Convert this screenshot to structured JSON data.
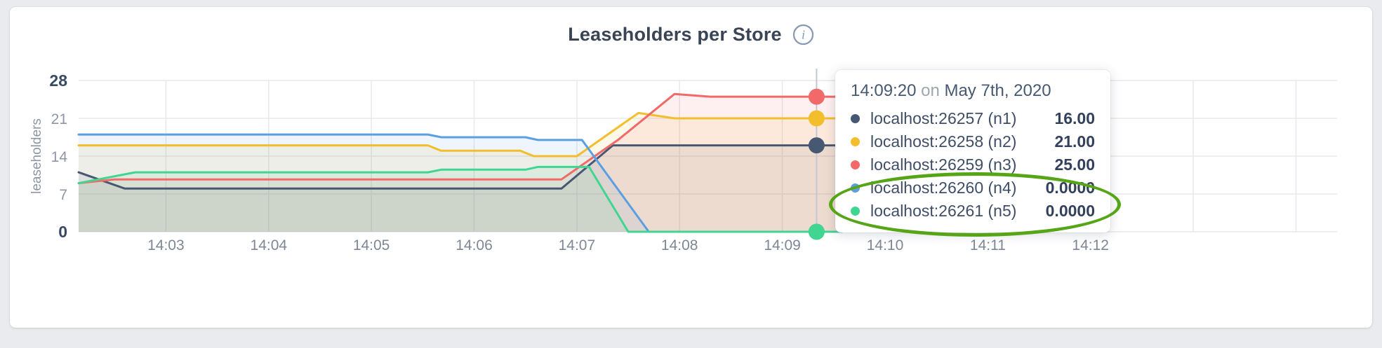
{
  "header": {
    "info_icon": "info-icon"
  },
  "chart_data": {
    "type": "area",
    "title": "Leaseholders per Store",
    "xlabel": "",
    "ylabel": "leaseholders",
    "ylim": [
      0,
      28
    ],
    "yticks": [
      0,
      7,
      14,
      21,
      28
    ],
    "x_tick_labels": [
      "14:03",
      "14:04",
      "14:05",
      "14:06",
      "14:07",
      "14:08",
      "14:09",
      "14:10",
      "14:11",
      "14:12"
    ],
    "x_tick_minutes": [
      3,
      4,
      5,
      6,
      7,
      8,
      9,
      10,
      11,
      12
    ],
    "x_domain_minutes": [
      2.15,
      14.4
    ],
    "grid": true,
    "legend_position": "hover-tooltip",
    "hover": {
      "time_label": "14:09:20",
      "date_label": "May 7th, 2020",
      "time_minutes": 9.333
    },
    "series": [
      {
        "name": "localhost:26257 (n1)",
        "color": "#475872",
        "hover_value": 16,
        "hover_value_label": "16.00",
        "points": [
          [
            2.15,
            11
          ],
          [
            2.6,
            8
          ],
          [
            6.85,
            8
          ],
          [
            7.35,
            16
          ],
          [
            9.58,
            16
          ]
        ]
      },
      {
        "name": "localhost:26258 (n2)",
        "color": "#F2BE2C",
        "hover_value": 21,
        "hover_value_label": "21.00",
        "points": [
          [
            2.15,
            16
          ],
          [
            5.55,
            16
          ],
          [
            5.68,
            15
          ],
          [
            6.45,
            15
          ],
          [
            6.58,
            14
          ],
          [
            7.0,
            14
          ],
          [
            7.6,
            22
          ],
          [
            7.95,
            21
          ],
          [
            9.58,
            21
          ]
        ]
      },
      {
        "name": "localhost:26259 (n3)",
        "color": "#F16969",
        "hover_value": 25,
        "hover_value_label": "25.00",
        "points": [
          [
            2.15,
            9
          ],
          [
            2.5,
            9.7
          ],
          [
            6.85,
            9.7
          ],
          [
            7.4,
            17
          ],
          [
            7.95,
            25.5
          ],
          [
            8.3,
            25
          ],
          [
            9.58,
            25
          ]
        ]
      },
      {
        "name": "localhost:26260 (n4)",
        "color": "#5B9FE0",
        "hover_value": 0,
        "hover_value_label": "0.0000",
        "points": [
          [
            2.15,
            18
          ],
          [
            5.55,
            18
          ],
          [
            5.68,
            17.5
          ],
          [
            6.5,
            17.5
          ],
          [
            6.62,
            17
          ],
          [
            7.05,
            17
          ],
          [
            7.7,
            0
          ],
          [
            9.58,
            0
          ]
        ]
      },
      {
        "name": "localhost:26261 (n5)",
        "color": "#41D592",
        "hover_value": 0,
        "hover_value_label": "0.0000",
        "points": [
          [
            2.15,
            9
          ],
          [
            2.7,
            11
          ],
          [
            5.55,
            11
          ],
          [
            5.68,
            11.5
          ],
          [
            6.5,
            11.5
          ],
          [
            6.62,
            12
          ],
          [
            7.12,
            12
          ],
          [
            7.5,
            0
          ],
          [
            9.58,
            0
          ]
        ]
      }
    ]
  },
  "tooltip": {
    "time": "14:09:20",
    "conjunction": "on",
    "date": "May 7th, 2020"
  },
  "annotation": {
    "shape": "ellipse",
    "color": "#55a516",
    "circled_rows": [
      "localhost:26260 (n4)",
      "localhost:26261 (n5)"
    ]
  },
  "colors": {
    "title": "#394455",
    "axis_strong": "#394a63",
    "axis_muted": "#8e96a3",
    "x_label": "#7d8795",
    "grid": "#e6e8ec",
    "hover_line": "#c3c7ce",
    "card_bg": "#ffffff",
    "page_bg": "#e9ebee"
  }
}
